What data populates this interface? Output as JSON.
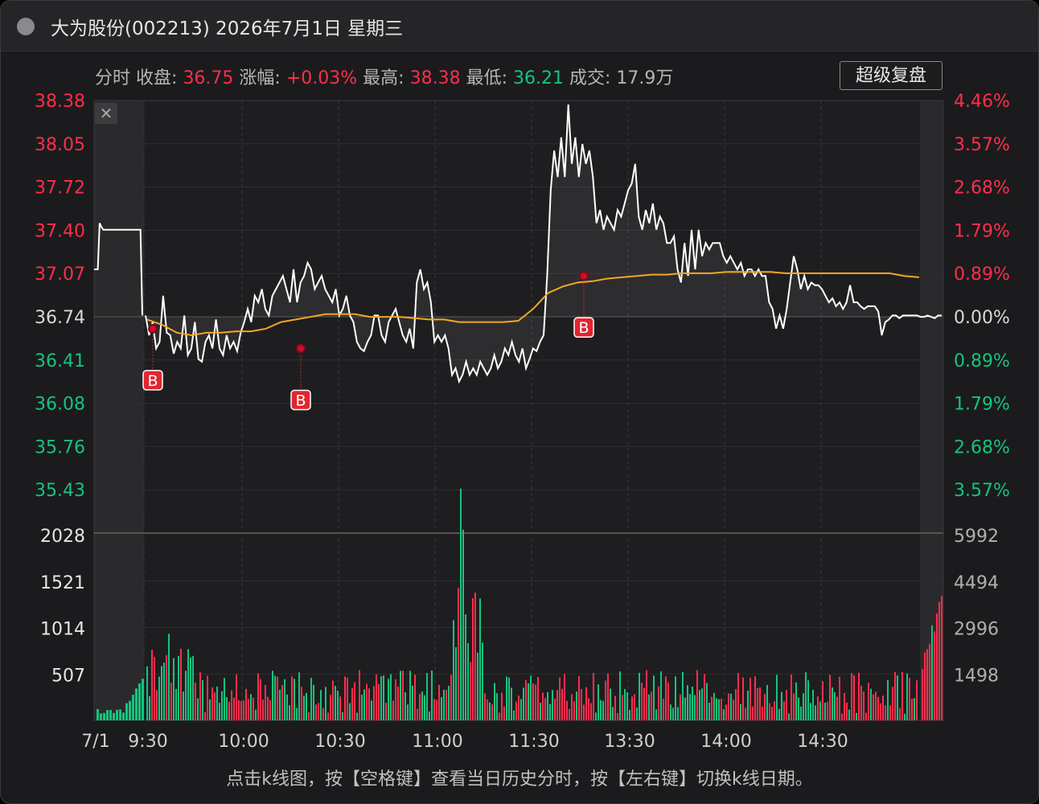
{
  "window": {
    "title": "大为股份(002213) 2026年7月1日 星期三"
  },
  "info": {
    "mode": "分时",
    "close_label": "收盘:",
    "close_value": "36.75",
    "change_label": "涨幅:",
    "change_value": "+0.03%",
    "high_label": "最高:",
    "high_value": "38.38",
    "low_label": "最低:",
    "low_value": "36.21",
    "volume_label": "成交:",
    "volume_value": "17.9万"
  },
  "buttons": {
    "replay": "超级复盘",
    "close": "✕"
  },
  "hint": "点击k线图，按【空格键】查看当日历史分时，按【左右键】切换k线日期。",
  "colors": {
    "up": "#ff2e4c",
    "down": "#15c47e",
    "price_line": "#ffffff",
    "avg_line": "#f5a623",
    "neutral": "#d8d8d8"
  },
  "axis": {
    "price_ticks": [
      {
        "label": "38.38",
        "color": "up"
      },
      {
        "label": "38.05",
        "color": "up"
      },
      {
        "label": "37.72",
        "color": "up"
      },
      {
        "label": "37.40",
        "color": "up"
      },
      {
        "label": "37.07",
        "color": "up"
      },
      {
        "label": "36.74",
        "color": "neutral"
      },
      {
        "label": "36.41",
        "color": "down"
      },
      {
        "label": "36.08",
        "color": "down"
      },
      {
        "label": "35.76",
        "color": "down"
      },
      {
        "label": "35.43",
        "color": "down"
      }
    ],
    "pct_ticks": [
      {
        "label": "4.46%",
        "color": "up"
      },
      {
        "label": "3.57%",
        "color": "up"
      },
      {
        "label": "2.68%",
        "color": "up"
      },
      {
        "label": "1.79%",
        "color": "up"
      },
      {
        "label": "0.89%",
        "color": "up"
      },
      {
        "label": "0.00%",
        "color": "neutral"
      },
      {
        "label": "0.89%",
        "color": "down"
      },
      {
        "label": "1.79%",
        "color": "down"
      },
      {
        "label": "2.68%",
        "color": "down"
      },
      {
        "label": "3.57%",
        "color": "down"
      }
    ],
    "volume_ticks_left": [
      "2028",
      "1521",
      "1014",
      "507"
    ],
    "volume_ticks_right": [
      "5992",
      "4494",
      "2996",
      "1498"
    ],
    "time_labels": [
      "7/1",
      "9:30",
      "10:00",
      "10:30",
      "11:00",
      "11:30",
      "13:30",
      "14:00",
      "14:30"
    ]
  },
  "chart_data": {
    "type": "line",
    "title": "",
    "ylim": [
      35.43,
      38.38
    ],
    "prev_close": 36.74,
    "volume_ylim": [
      0,
      2028
    ],
    "pre_market": {
      "values": [
        37.1,
        37.1,
        37.1,
        37.45,
        37.42,
        37.4,
        37.4,
        37.4,
        37.4,
        37.4,
        37.4,
        37.4,
        37.4,
        37.4,
        37.4,
        37.4,
        37.4,
        37.4,
        37.4,
        37.4,
        37.4,
        37.4,
        37.4,
        37.4,
        37.4,
        37.4,
        36.75
      ]
    },
    "series": [
      {
        "name": "price",
        "values": [
          36.75,
          36.6,
          36.7,
          36.5,
          36.55,
          36.9,
          36.62,
          36.6,
          36.46,
          36.55,
          36.5,
          36.75,
          36.45,
          36.5,
          36.7,
          36.42,
          36.4,
          36.55,
          36.6,
          36.5,
          36.72,
          36.5,
          36.45,
          36.6,
          36.5,
          36.55,
          36.48,
          36.62,
          36.7,
          36.8,
          36.7,
          36.9,
          36.85,
          36.95,
          36.8,
          36.75,
          36.9,
          36.95,
          37.0,
          37.05,
          36.95,
          36.85,
          37.1,
          36.85,
          37.0,
          37.05,
          37.15,
          37.1,
          36.95,
          37.0,
          37.05,
          36.95,
          36.9,
          36.85,
          36.95,
          36.75,
          36.8,
          36.9,
          36.75,
          36.7,
          36.55,
          36.5,
          36.48,
          36.55,
          36.6,
          36.75,
          36.75,
          36.6,
          36.55,
          36.7,
          36.75,
          36.8,
          36.7,
          36.6,
          36.55,
          36.65,
          36.5,
          37.0,
          37.1,
          36.95,
          37.0,
          36.85,
          36.55,
          36.6,
          36.55,
          36.6,
          36.5,
          36.3,
          36.35,
          36.25,
          36.3,
          36.4,
          36.3,
          36.35,
          36.3,
          36.4,
          36.35,
          36.3,
          36.35,
          36.45,
          36.35,
          36.4,
          36.5,
          36.45,
          36.55,
          36.45,
          36.4,
          36.5,
          36.35,
          36.42,
          36.5,
          36.48,
          36.55,
          36.6,
          37.05,
          37.7,
          38.0,
          37.8,
          38.1,
          37.8,
          38.35,
          37.9,
          38.1,
          37.8,
          38.05,
          37.9,
          38.0,
          37.8,
          37.45,
          37.55,
          37.4,
          37.5,
          37.45,
          37.4,
          37.55,
          37.5,
          37.6,
          37.7,
          37.75,
          37.9,
          37.5,
          37.4,
          37.55,
          37.45,
          37.6,
          37.4,
          37.5,
          37.45,
          37.3,
          37.3,
          37.35,
          37.1,
          37.0,
          37.3,
          37.05,
          37.4,
          37.1,
          37.4,
          37.2,
          37.3,
          37.25,
          37.3,
          37.3,
          37.3,
          37.2,
          37.15,
          37.2,
          37.15,
          37.1,
          37.15,
          37.05,
          37.1,
          37.1,
          37.05,
          37.1,
          37.05,
          37.05,
          36.85,
          36.8,
          36.65,
          36.75,
          36.65,
          36.8,
          37.0,
          37.2,
          37.1,
          36.95,
          37.05,
          36.95,
          37.0,
          36.98,
          36.98,
          36.95,
          36.9,
          36.85,
          36.88,
          36.82,
          36.85,
          36.8,
          36.85,
          36.98,
          36.85,
          36.85,
          36.82,
          36.8,
          36.82,
          36.82,
          36.82,
          36.78,
          36.6,
          36.7,
          36.72,
          36.75,
          36.75,
          36.73,
          36.75,
          36.75,
          36.75,
          36.75,
          36.75,
          36.74,
          36.74,
          36.75,
          36.74,
          36.73,
          36.75,
          36.75
        ]
      },
      {
        "name": "avg",
        "values": [
          36.72,
          36.68,
          36.62,
          36.6,
          36.62,
          36.62,
          36.63,
          36.63,
          36.65,
          36.7,
          36.72,
          36.74,
          36.76,
          36.76,
          36.76,
          36.74,
          36.74,
          36.74,
          36.73,
          36.72,
          36.72,
          36.7,
          36.7,
          36.7,
          36.7,
          36.71,
          36.8,
          36.92,
          36.97,
          37.0,
          37.01,
          37.03,
          37.04,
          37.05,
          37.06,
          37.06,
          37.07,
          37.07,
          37.07,
          37.08,
          37.08,
          37.08,
          37.08,
          37.07,
          37.07,
          37.07,
          37.07,
          37.07,
          37.07,
          37.07,
          37.07,
          37.05,
          37.04
        ]
      }
    ],
    "buy_markers": [
      {
        "time": "9:32",
        "price": 36.65,
        "label": "B"
      },
      {
        "time": "10:17",
        "price": 36.5,
        "label": "B"
      },
      {
        "time": "13:15",
        "price": 37.05,
        "label": "B"
      }
    ]
  }
}
